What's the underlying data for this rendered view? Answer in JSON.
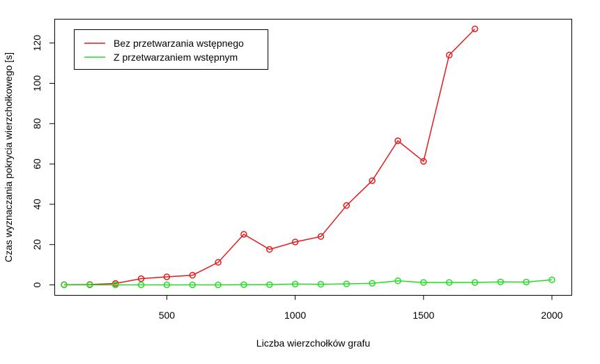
{
  "chart_data": {
    "type": "line",
    "title": "",
    "xlabel": "Liczba wierzchołków grafu",
    "ylabel": "Czas wyznaczania pokrycia wierzchołkowego [s]",
    "xlim": [
      62,
      2076
    ],
    "ylim": [
      -5,
      132
    ],
    "xticks": [
      500,
      1000,
      1500,
      2000
    ],
    "yticks": [
      0,
      20,
      40,
      60,
      80,
      100,
      120
    ],
    "grid": false,
    "legend_position": "top-left",
    "series": [
      {
        "name": "Bez przetwarzania wstępnego",
        "color": "#e41a1c",
        "marker": "open-circle",
        "x": [
          100,
          200,
          300,
          400,
          500,
          600,
          700,
          800,
          900,
          1000,
          1100,
          1200,
          1300,
          1400,
          1500,
          1600,
          1700
        ],
        "y": [
          0.1,
          0.2,
          0.7,
          3.1,
          4.0,
          4.8,
          11.2,
          25.1,
          17.6,
          21.3,
          24.0,
          39.4,
          51.7,
          71.5,
          61.3,
          114.0,
          127.0
        ]
      },
      {
        "name": "Z przetwarzaniem wstępnym",
        "color": "#22dd22",
        "marker": "open-circle",
        "x": [
          100,
          200,
          300,
          400,
          500,
          600,
          700,
          800,
          900,
          1000,
          1100,
          1200,
          1300,
          1400,
          1500,
          1600,
          1700,
          1800,
          1900,
          2000
        ],
        "y": [
          0.0,
          0.0,
          0.0,
          0.0,
          0.0,
          0.0,
          0.0,
          0.1,
          0.1,
          0.4,
          0.3,
          0.5,
          0.8,
          2.0,
          1.2,
          1.2,
          1.2,
          1.5,
          1.4,
          2.5
        ]
      }
    ]
  }
}
